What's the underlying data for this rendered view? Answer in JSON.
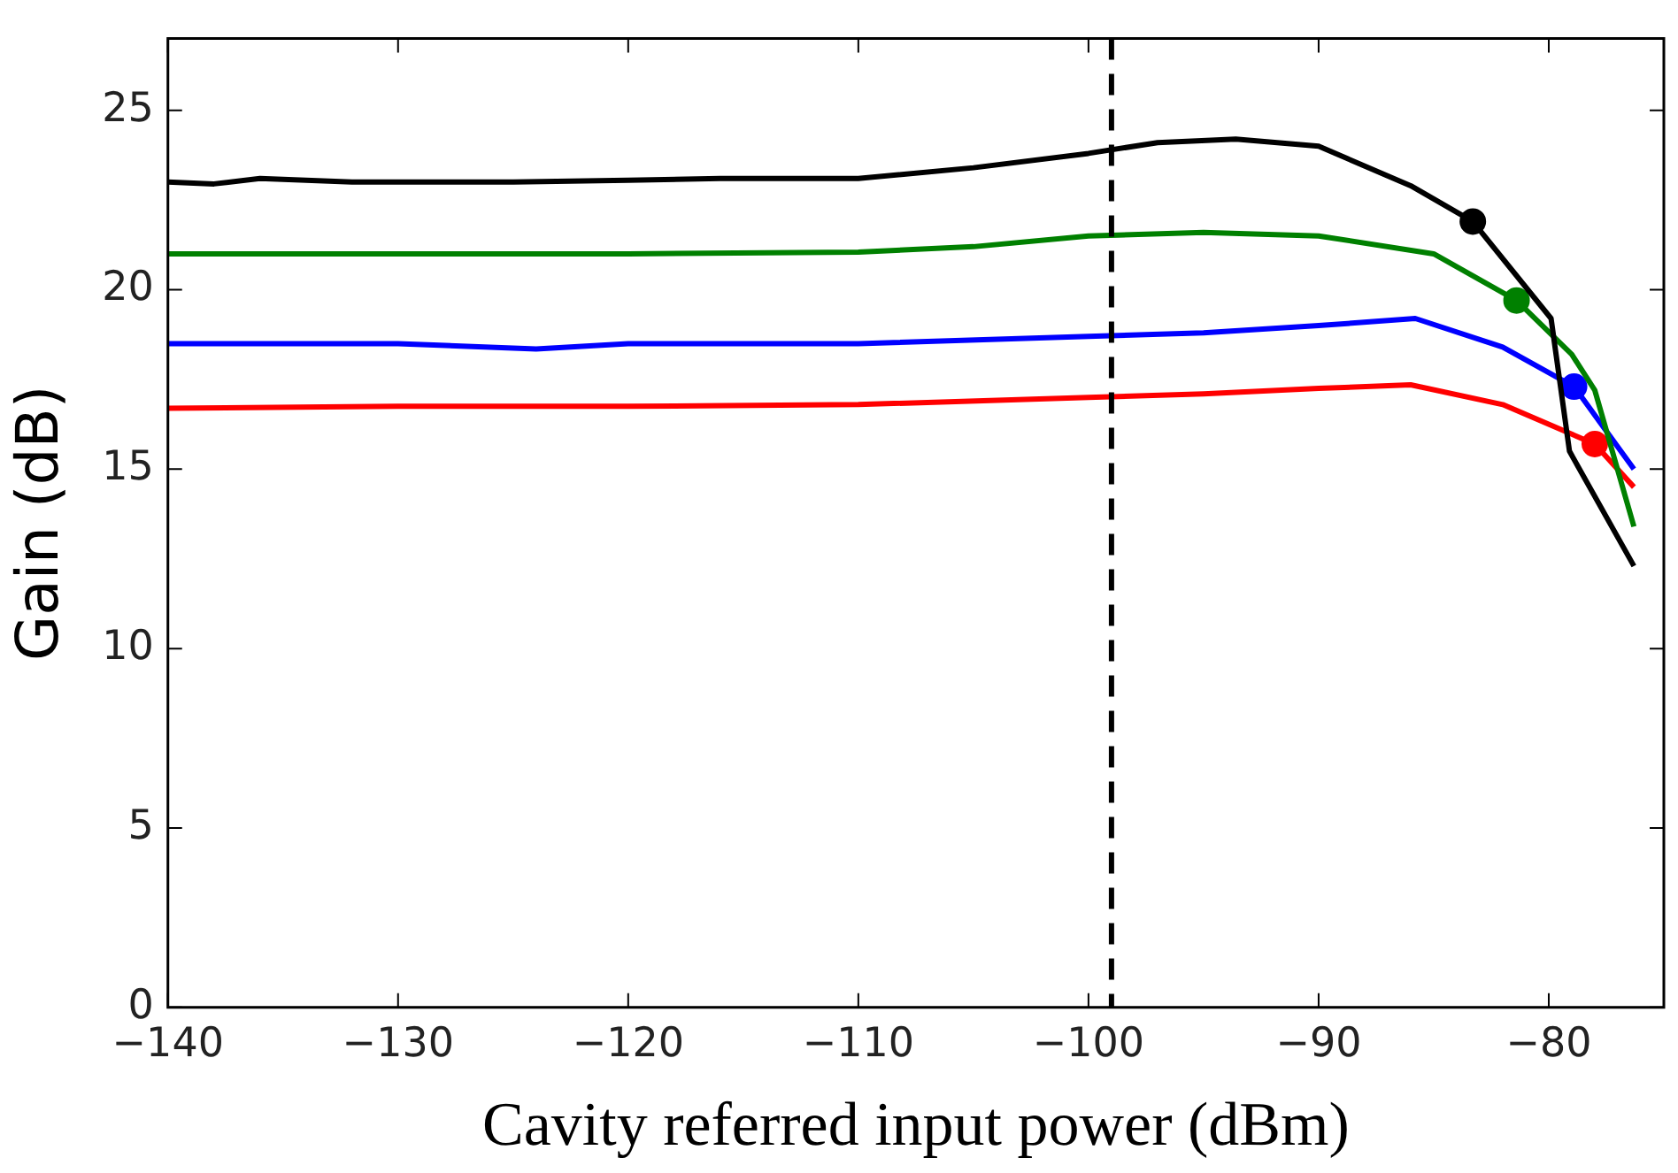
{
  "chart_data": {
    "type": "line",
    "xlabel": "Cavity referred input power (dBm)",
    "ylabel": "Gain (dB)",
    "xlim": [
      -140,
      -75
    ],
    "xticks": [
      -140,
      -130,
      -120,
      -110,
      -100,
      -90,
      -80
    ],
    "ylim": [
      0,
      27
    ],
    "yticks": [
      0,
      5,
      10,
      15,
      20,
      25
    ],
    "grid": false,
    "legend": false,
    "line_style": "solid",
    "series": [
      {
        "type": "line",
        "color": "#000000",
        "marker": "none",
        "x": [
          -140,
          -138,
          -136,
          -132,
          -125,
          -120,
          -116,
          -110,
          -105,
          -100,
          -97,
          -93.6,
          -90,
          -86,
          -83.3,
          -79.9,
          -79.1,
          -76.3
        ],
        "values": [
          23.0,
          22.95,
          23.1,
          23.0,
          23.0,
          23.05,
          23.1,
          23.1,
          23.4,
          23.8,
          24.1,
          24.2,
          24.0,
          22.9,
          21.9,
          19.2,
          15.5,
          12.3
        ]
      },
      {
        "type": "line",
        "color": "#008000",
        "marker": "none",
        "x": [
          -140,
          -130,
          -120,
          -110,
          -105,
          -100,
          -95,
          -90,
          -85,
          -81.4,
          -79,
          -78,
          -76.3
        ],
        "values": [
          21.0,
          21.0,
          21.0,
          21.05,
          21.2,
          21.5,
          21.6,
          21.5,
          21.0,
          19.7,
          18.2,
          17.2,
          13.4
        ]
      },
      {
        "type": "line",
        "color": "#0000ff",
        "marker": "none",
        "x": [
          -140,
          -130,
          -124,
          -120,
          -110,
          -100,
          -95,
          -90,
          -85.8,
          -82,
          -78.9,
          -76.3
        ],
        "values": [
          18.5,
          18.5,
          18.35,
          18.5,
          18.5,
          18.7,
          18.8,
          19.0,
          19.2,
          18.4,
          17.3,
          15.0
        ]
      },
      {
        "type": "line",
        "color": "#ff0000",
        "marker": "none",
        "x": [
          -140,
          -130,
          -120,
          -110,
          -100,
          -95,
          -90,
          -86,
          -82,
          -78,
          -76.3
        ],
        "values": [
          16.7,
          16.75,
          16.75,
          16.8,
          17.0,
          17.1,
          17.25,
          17.35,
          16.8,
          15.7,
          14.5
        ]
      },
      {
        "type": "scatter",
        "color": "#000000",
        "marker": "circle",
        "x": [
          -83.3
        ],
        "values": [
          21.9
        ]
      },
      {
        "type": "scatter",
        "color": "#008000",
        "marker": "circle",
        "x": [
          -81.4
        ],
        "values": [
          19.7
        ]
      },
      {
        "type": "scatter",
        "color": "#0000ff",
        "marker": "circle",
        "x": [
          -78.9
        ],
        "values": [
          17.3
        ]
      },
      {
        "type": "scatter",
        "color": "#ff0000",
        "marker": "circle",
        "x": [
          -78.0
        ],
        "values": [
          15.7
        ]
      }
    ],
    "ref_lines": [
      {
        "axis": "x",
        "value": -99,
        "color": "#000000",
        "line_style": "dashed"
      }
    ]
  }
}
